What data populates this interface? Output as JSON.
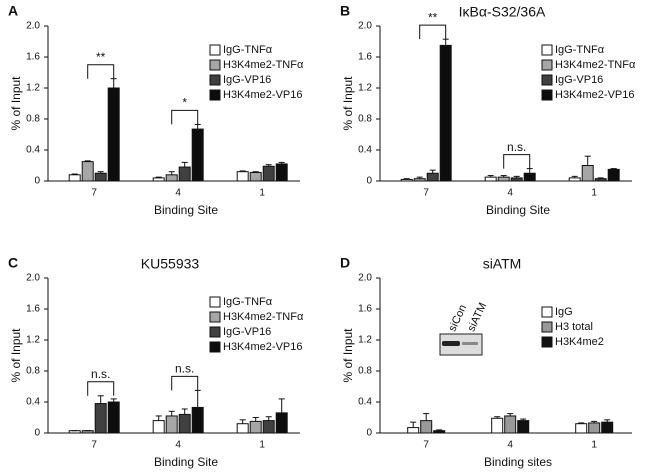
{
  "chart_data": [
    {
      "type": "bar",
      "panel_label": "A",
      "ylabel": "% of Input",
      "xlabel": "Binding Site",
      "categories": [
        "7",
        "4",
        "1"
      ],
      "series": [
        {
          "name": "IgG-TNFα",
          "color": "#ffffff",
          "values": [
            0.08,
            0.04,
            0.12
          ],
          "errors": [
            0.01,
            0.01,
            0.01
          ]
        },
        {
          "name": "H3K4me2-TNFα",
          "color": "#a6a6a6",
          "values": [
            0.25,
            0.08,
            0.11
          ],
          "errors": [
            0.01,
            0.04,
            0.01
          ]
        },
        {
          "name": "IgG-VP16",
          "color": "#404040",
          "values": [
            0.1,
            0.18,
            0.19
          ],
          "errors": [
            0.02,
            0.06,
            0.02
          ]
        },
        {
          "name": "H3K4me2-VP16",
          "color": "#0d0d0d",
          "values": [
            1.2,
            0.67,
            0.22
          ],
          "errors": [
            0.12,
            0.06,
            0.02
          ]
        }
      ],
      "ylim": [
        0,
        2
      ],
      "yticks": [
        0,
        0.4,
        0.8,
        1.2,
        1.6,
        {
          "value": 2,
          "label": "2.0"
        }
      ],
      "legend": "upper right",
      "significance": [
        {
          "at": "7",
          "label": "**"
        },
        {
          "at": "4",
          "label": "*"
        }
      ]
    },
    {
      "type": "bar",
      "panel_label": "B",
      "title": "IκBα-S32/36A",
      "ylabel": "% of Input",
      "xlabel": "Binding Site",
      "categories": [
        "7",
        "4",
        "1"
      ],
      "series": [
        {
          "name": "IgG-TNFα",
          "color": "#ffffff",
          "values": [
            0.02,
            0.05,
            0.04
          ],
          "errors": [
            0.01,
            0.02,
            0.02
          ]
        },
        {
          "name": "H3K4me2-TNFα",
          "color": "#a6a6a6",
          "values": [
            0.03,
            0.05,
            0.2
          ],
          "errors": [
            0.02,
            0.02,
            0.12
          ]
        },
        {
          "name": "IgG-VP16",
          "color": "#404040",
          "values": [
            0.1,
            0.04,
            0.03
          ],
          "errors": [
            0.04,
            0.02,
            0.01
          ]
        },
        {
          "name": "H3K4me2-VP16",
          "color": "#0d0d0d",
          "values": [
            1.75,
            0.1,
            0.15
          ],
          "errors": [
            0.08,
            0.06,
            0.01
          ]
        }
      ],
      "ylim": [
        0,
        2
      ],
      "yticks": [
        0,
        0.4,
        0.8,
        1.2,
        1.6,
        {
          "value": 2,
          "label": "2.0"
        }
      ],
      "legend": "upper right",
      "significance": [
        {
          "at": "7",
          "label": "**"
        },
        {
          "at": "4",
          "label": "n.s."
        }
      ]
    },
    {
      "type": "bar",
      "panel_label": "C",
      "title": "KU55933",
      "ylabel": "% of Input",
      "xlabel": "Binding Site",
      "categories": [
        "7",
        "4",
        "1"
      ],
      "series": [
        {
          "name": "IgG-TNFα",
          "color": "#ffffff",
          "values": [
            0.03,
            0.16,
            0.12
          ],
          "errors": [
            0,
            0.06,
            0.05
          ]
        },
        {
          "name": "H3K4me2-TNFα",
          "color": "#a6a6a6",
          "values": [
            0.03,
            0.22,
            0.15
          ],
          "errors": [
            0,
            0.06,
            0.05
          ]
        },
        {
          "name": "IgG-VP16",
          "color": "#404040",
          "values": [
            0.38,
            0.24,
            0.16
          ],
          "errors": [
            0.1,
            0.07,
            0.05
          ]
        },
        {
          "name": "H3K4me2-VP16",
          "color": "#0d0d0d",
          "values": [
            0.4,
            0.33,
            0.26
          ],
          "errors": [
            0.04,
            0.22,
            0.18
          ]
        }
      ],
      "ylim": [
        0,
        2
      ],
      "yticks": [
        0,
        0.4,
        0.8,
        1.2,
        1.6,
        {
          "value": 2,
          "label": "2.0"
        }
      ],
      "legend": "upper right",
      "significance": [
        {
          "at": "7",
          "label": "n.s."
        },
        {
          "at": "4",
          "label": "n.s."
        }
      ]
    },
    {
      "type": "bar",
      "panel_label": "D",
      "title": "siATM",
      "ylabel": "% of Input",
      "xlabel": "Binding sites",
      "categories": [
        "7",
        "4",
        "1"
      ],
      "series": [
        {
          "name": "IgG",
          "color": "#ffffff",
          "values": [
            0.07,
            0.19,
            0.12
          ],
          "errors": [
            0.07,
            0.02,
            0.01
          ]
        },
        {
          "name": "H3 total",
          "color": "#999999",
          "values": [
            0.16,
            0.22,
            0.13
          ],
          "errors": [
            0.09,
            0.03,
            0.02
          ]
        },
        {
          "name": "H3K4me2",
          "color": "#111111",
          "values": [
            0.03,
            0.16,
            0.14
          ],
          "errors": [
            0.01,
            0.02,
            0.03
          ]
        }
      ],
      "ylim": [
        0,
        2
      ],
      "yticks": [
        0,
        0.4,
        0.8,
        1.2,
        1.6,
        {
          "value": 2,
          "label": "2.0"
        }
      ],
      "legend": "upper right",
      "inset_labels": [
        "siCon",
        "siATM"
      ]
    }
  ]
}
